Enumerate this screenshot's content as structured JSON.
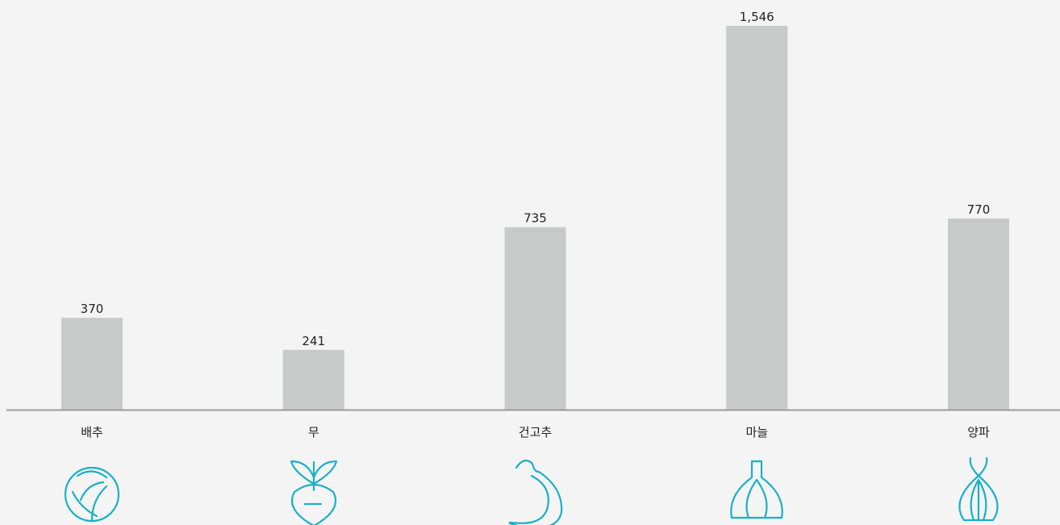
{
  "chart_data": {
    "type": "bar",
    "categories": [
      "배추",
      "무",
      "건고추",
      "마늘",
      "양파"
    ],
    "values": [
      370,
      241,
      735,
      1546,
      770
    ],
    "value_labels": [
      "370",
      "241",
      "735",
      "1,546",
      "770"
    ],
    "color": "#c8cac9"
  }
}
